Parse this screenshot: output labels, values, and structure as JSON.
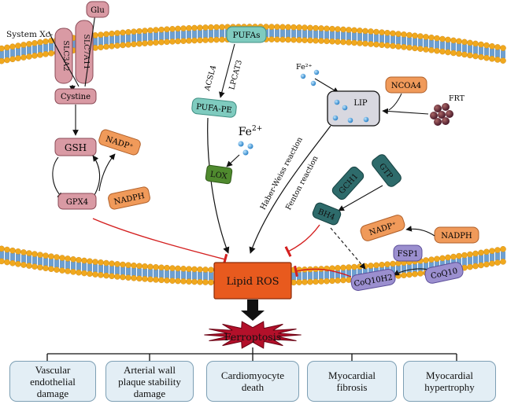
{
  "membrane": {
    "label": "System Xc-"
  },
  "transporter": {
    "left_subunit": "SLC3A2",
    "right_subunit": "SLC7A11"
  },
  "molecules": {
    "glu": "Glu",
    "cystine": "Cystine",
    "gsh": "GSH",
    "gpx4": "GPX4",
    "nadp_left": "NADP⁺",
    "nadph_left": "NADPH",
    "pufas": "PUFAs",
    "acsl4": "ACSL4",
    "lpcat3": "LPCAT3",
    "pufa_pe": "PUFA-PE",
    "fe2_mid": "Fe",
    "fe2_mid_charge": "2+",
    "lox": "LOX",
    "fe_top": "Fe²⁺",
    "lip": "LIP",
    "ncoa4": "NCOA4",
    "frt": "FRT",
    "haber_weiss": "Haber-Weiss reaction",
    "fenton": "Fenton reaction",
    "gch1": "GCH1",
    "gtp": "GTP",
    "bh4": "BH4",
    "nadp_right": "NADP⁺",
    "nadph_right": "NADPH",
    "fsp1": "FSP1",
    "coq10h2": "CoQ10H2",
    "coq10": "CoQ10",
    "lipid_ros": "Lipid ROS",
    "ferroptosis": "Ferroptosis"
  },
  "outcomes": [
    "Vascular\nendothelial\ndamage",
    "Arterial wall\nplaque stability\ndamage",
    "Cardiomyocyte\ndeath",
    "Myocardial\nfibrosis",
    "Myocardial\nhypertrophy"
  ],
  "colors": {
    "lipid_head": "#f0a81e",
    "lipid_core": "#6d9fd0",
    "pink": "#d99aa4",
    "pufa": "#7fcbbf",
    "orange": "#f09a5a",
    "green": "#4f8a2e",
    "teal": "#2e6b6b",
    "purple": "#9b8fcf",
    "ros": "#e85a1e",
    "burst": "#b3102a",
    "inhibit": "#d42020",
    "outcome_fill": "#e3eef5"
  }
}
